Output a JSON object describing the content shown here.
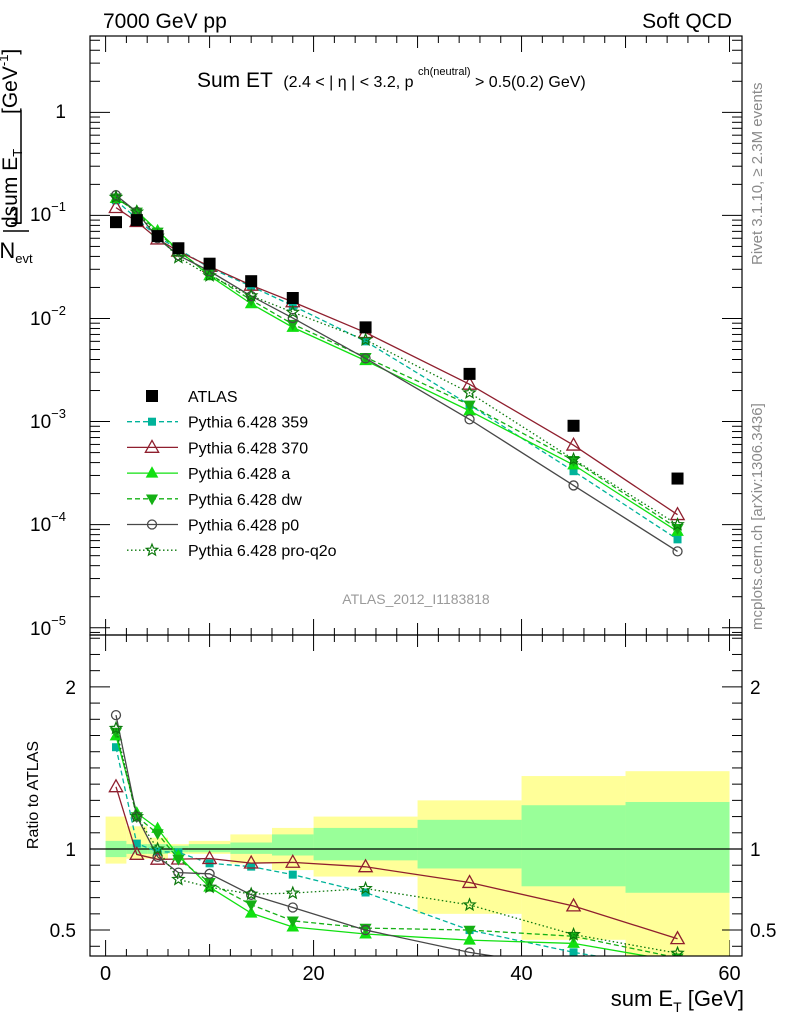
{
  "header": {
    "left": "7000 GeV pp",
    "right": "Soft QCD"
  },
  "title": {
    "main": "Sum ET",
    "cut_a": "(2.4 < |",
    "eta": "η",
    "cut_b": "| < 3.2, p",
    "sup": "ch(neutral)",
    "cut_c": " > 0.5(0.2) GeV)"
  },
  "side_labels": {
    "rivet": "Rivet 3.1.10, ≥ 2.3M events",
    "mcplots": "mcplots.cern.ch [arXiv:1306.3436]"
  },
  "watermark": "ATLAS_2012_I1183818",
  "axes": {
    "ylabel_one": "1",
    "ylabel_nevt": "N",
    "ylabel_nevt_sub": "evt",
    "ylabel_dn": "d N",
    "ylabel_dn_sub": "evt",
    "ylabel_ds": "dsum E",
    "ylabel_ds_sub": "T",
    "ylabel_unit": "[GeV",
    "ylabel_unit_sup": "-1",
    "ylabel_unit_close": "]",
    "ratio_ylabel": "Ratio to ATLAS",
    "xlabel": "sum E",
    "xlabel_sub": "T",
    "xlabel_unit": " [GeV]",
    "xlim": [
      -1.5,
      61.2
    ],
    "ylim_main": [
      8.5e-06,
      5.5
    ],
    "ylim_ratio": [
      0.34,
      2.32
    ],
    "x_ticks": [
      0,
      20,
      40,
      60
    ],
    "x_tick_labels": [
      "0",
      "20",
      "40",
      "60"
    ],
    "main_tick_labels": [
      "1",
      "10",
      "−1",
      "10",
      "−2",
      "10",
      "−3",
      "10",
      "−4",
      "10",
      "−5"
    ],
    "ratio_ticks": [
      0.5,
      1,
      2
    ],
    "ratio_tick_labels": [
      "0.5",
      "1",
      "2"
    ]
  },
  "chart_data": {
    "type": "line",
    "log_y": true,
    "x": [
      1,
      3,
      5,
      7,
      10,
      14,
      18,
      25,
      35,
      45,
      55
    ],
    "data": {
      "name": "ATLAS",
      "values": [
        0.086,
        0.09,
        0.063,
        0.048,
        0.034,
        0.023,
        0.0158,
        0.0082,
        0.0029,
        0.00091,
        0.00028
      ]
    },
    "bands": {
      "edges": [
        0,
        2,
        4,
        6,
        8,
        12,
        16,
        20,
        30,
        40,
        50,
        60
      ],
      "stat_low": [
        0.95,
        0.97,
        0.97,
        0.98,
        0.98,
        0.97,
        0.96,
        0.93,
        0.88,
        0.77,
        0.73
      ],
      "stat_high": [
        1.05,
        1.03,
        1.03,
        1.02,
        1.03,
        1.04,
        1.09,
        1.13,
        1.18,
        1.27,
        1.29
      ],
      "total_low": [
        0.91,
        0.94,
        0.94,
        0.97,
        0.97,
        0.91,
        0.87,
        0.83,
        0.6,
        0.44,
        0.34
      ],
      "total_high": [
        1.2,
        1.14,
        1.07,
        1.03,
        1.05,
        1.09,
        1.13,
        1.2,
        1.3,
        1.45,
        1.48
      ]
    },
    "series": [
      {
        "name": "Pythia 6.428 359",
        "color": "#00b39a",
        "dash": "5,3",
        "marker": "square",
        "values": [
          0.14,
          0.093,
          0.062,
          0.047,
          0.031,
          0.0205,
          0.0133,
          0.006,
          0.00145,
          0.00033,
          7.2e-05
        ]
      },
      {
        "name": "Pythia 6.428 370",
        "color": "#8f1f2e",
        "dash": "",
        "marker": "triangle-open",
        "values": [
          0.119,
          0.087,
          0.059,
          0.045,
          0.032,
          0.021,
          0.0145,
          0.0073,
          0.0023,
          0.00059,
          0.000125
        ]
      },
      {
        "name": "Pythia 6.428 a",
        "color": "#11e011",
        "dash": "",
        "marker": "triangle",
        "values": [
          0.146,
          0.11,
          0.071,
          0.046,
          0.026,
          0.0139,
          0.0082,
          0.0039,
          0.00127,
          0.00038,
          8.6e-05
        ]
      },
      {
        "name": "Pythia 6.428 dw",
        "color": "#14b014",
        "dash": "5,3",
        "marker": "triangle-down",
        "values": [
          0.148,
          0.108,
          0.069,
          0.045,
          0.027,
          0.0151,
          0.0088,
          0.0042,
          0.00145,
          0.00042,
          9.2e-05
        ]
      },
      {
        "name": "Pythia 6.428 p0",
        "color": "#484848",
        "dash": "",
        "marker": "circle-open",
        "values": [
          0.157,
          0.108,
          0.06,
          0.041,
          0.0288,
          0.0165,
          0.0101,
          0.0041,
          0.00105,
          0.00024,
          5.5e-05
        ]
      },
      {
        "name": "Pythia 6.428 pro-q2o",
        "color": "#0c780c",
        "dash": "1.5,2.5",
        "marker": "star-open",
        "values": [
          0.15,
          0.108,
          0.063,
          0.039,
          0.026,
          0.0166,
          0.0115,
          0.0062,
          0.0019,
          0.00043,
          0.0001
        ]
      }
    ]
  }
}
